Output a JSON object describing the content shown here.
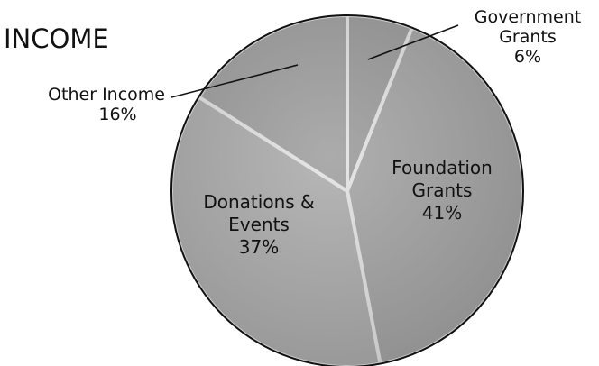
{
  "chart_data": {
    "type": "pie",
    "title": "INCOME",
    "categories": [
      "Government Grants",
      "Foundation Grants",
      "Donations & Events",
      "Other Income"
    ],
    "values": [
      6,
      41,
      37,
      16
    ],
    "value_labels": [
      "6%",
      "41%",
      "37%",
      "16%"
    ],
    "colors": [
      "#8e8e8e",
      "#9c9c9c",
      "#a9a9a9",
      "#949494"
    ]
  }
}
